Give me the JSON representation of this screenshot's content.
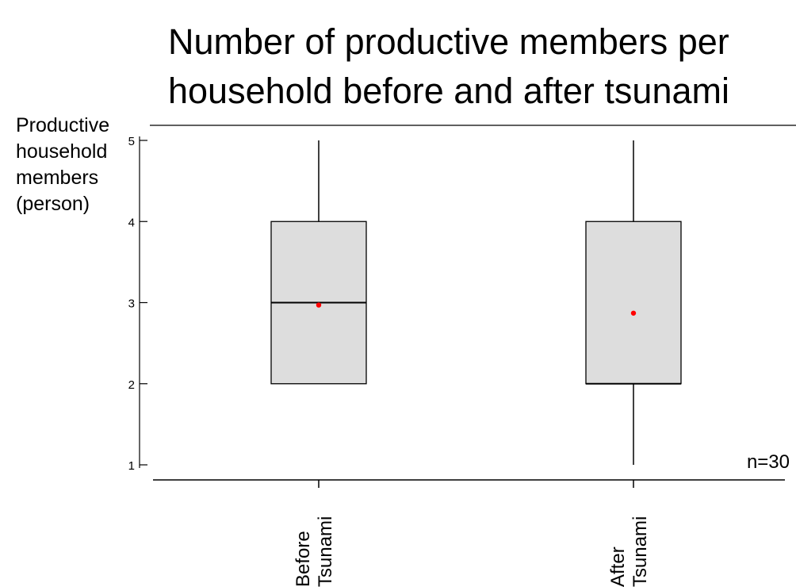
{
  "chart_data": {
    "type": "box",
    "title": [
      "Number of productive members per",
      "household before and after tsunami"
    ],
    "ylabel": [
      "Productive",
      "household",
      "members",
      "(person)"
    ],
    "xlabel": "",
    "ylim": [
      1,
      5
    ],
    "yticks": [
      1,
      2,
      3,
      4,
      5
    ],
    "categories": [
      [
        "Before",
        "Tsunami"
      ],
      [
        "After",
        "Tsunami"
      ]
    ],
    "boxes": [
      {
        "min": 2,
        "q1": 2,
        "median": 3,
        "q3": 4,
        "max": 5,
        "whisker_low": 2,
        "whisker_high": 5,
        "mean": 2.97
      },
      {
        "min": 1,
        "q1": 2,
        "median": 2,
        "q3": 4,
        "max": 5,
        "whisker_low": 1,
        "whisker_high": 5,
        "mean": 2.87
      }
    ],
    "annotation": "n=30",
    "grid": false,
    "colors": {
      "box_fill": "#dddddd",
      "mean_marker": "#ff0000",
      "line": "#000000"
    }
  }
}
